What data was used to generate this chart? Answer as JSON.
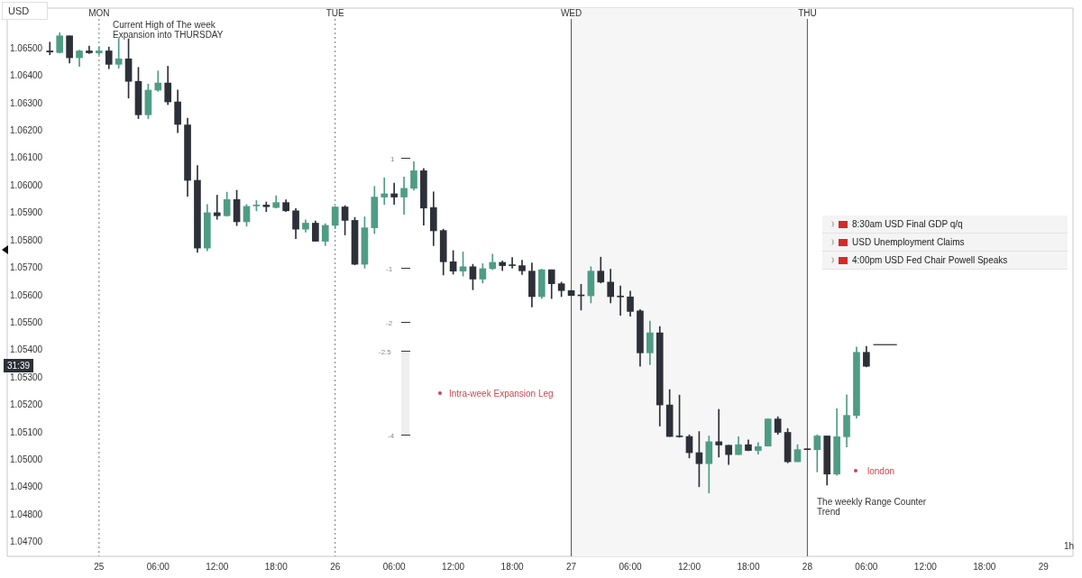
{
  "chart_data": {
    "type": "candlestick",
    "ylabel": "USD",
    "x": [
      "--09-24T19:00",
      "--09-24T20:00",
      "--09-24T21:00",
      "--09-24T22:00",
      "--09-24T23:00",
      "--09-25T00:00",
      "--09-25T01:00",
      "--09-25T02:00",
      "--09-25T03:00",
      "--09-25T04:00",
      "--09-25T05:00",
      "--09-25T06:00",
      "--09-25T07:00",
      "--09-25T08:00",
      "--09-25T09:00",
      "--09-25T10:00",
      "--09-25T11:00",
      "--09-25T12:00",
      "--09-25T13:00",
      "--09-25T14:00",
      "--09-25T15:00",
      "--09-25T16:00",
      "--09-25T17:00",
      "--09-25T18:00",
      "--09-25T19:00",
      "--09-25T20:00",
      "--09-25T21:00",
      "--09-25T22:00",
      "--09-25T23:00",
      "--09-26T00:00",
      "--09-26T01:00",
      "--09-26T02:00",
      "--09-26T03:00",
      "--09-26T04:00",
      "--09-26T05:00",
      "--09-26T06:00",
      "--09-26T07:00",
      "--09-26T08:00",
      "--09-26T09:00",
      "--09-26T10:00",
      "--09-26T11:00",
      "--09-26T12:00",
      "--09-26T13:00",
      "--09-26T14:00",
      "--09-26T15:00",
      "--09-26T16:00",
      "--09-26T17:00",
      "--09-26T18:00",
      "--09-26T19:00",
      "--09-26T20:00",
      "--09-26T21:00",
      "--09-26T22:00",
      "--09-26T23:00",
      "--09-27T00:00",
      "--09-27T01:00",
      "--09-27T02:00",
      "--09-27T03:00",
      "--09-27T04:00",
      "--09-27T05:00",
      "--09-27T06:00",
      "--09-27T07:00",
      "--09-27T08:00",
      "--09-27T09:00",
      "--09-27T10:00",
      "--09-27T11:00",
      "--09-27T12:00",
      "--09-27T13:00",
      "--09-27T14:00",
      "--09-27T15:00",
      "--09-27T16:00",
      "--09-27T17:00",
      "--09-27T18:00",
      "--09-27T19:00",
      "--09-27T20:00",
      "--09-27T21:00",
      "--09-27T22:00",
      "--09-27T23:00",
      "--09-28T00:00",
      "--09-28T01:00",
      "--09-28T02:00",
      "--09-28T03:00",
      "--09-28T04:00",
      "--09-28T05:00",
      "--09-28T06:00"
    ],
    "ohlc": [
      [
        1.06492,
        1.06524,
        1.06478,
        1.06488
      ],
      [
        1.06486,
        1.06558,
        1.06484,
        1.06547
      ],
      [
        1.06547,
        1.06547,
        1.06448,
        1.06467
      ],
      [
        1.06467,
        1.06495,
        1.06435,
        1.06492
      ],
      [
        1.06492,
        1.0651,
        1.06482,
        1.06485
      ],
      [
        1.06485,
        1.06506,
        1.06478,
        1.06492
      ],
      [
        1.06492,
        1.06506,
        1.06427,
        1.06443
      ],
      [
        1.06443,
        1.06538,
        1.06429,
        1.06463
      ],
      [
        1.06463,
        1.06536,
        1.0632,
        1.06381
      ],
      [
        1.06381,
        1.06432,
        1.06245,
        1.06259
      ],
      [
        1.06259,
        1.06371,
        1.06245,
        1.06349
      ],
      [
        1.06349,
        1.06419,
        1.06344,
        1.06375
      ],
      [
        1.06375,
        1.06436,
        1.06296,
        1.06306
      ],
      [
        1.06306,
        1.06349,
        1.06194,
        1.06224
      ],
      [
        1.06222,
        1.06247,
        1.05962,
        1.0602
      ],
      [
        1.0602,
        1.06074,
        1.05757,
        1.05773
      ],
      [
        1.05773,
        1.05932,
        1.05763,
        1.05902
      ],
      [
        1.05902,
        1.05966,
        1.05878,
        1.05891
      ],
      [
        1.05891,
        1.05977,
        1.05889,
        1.0595
      ],
      [
        1.0595,
        1.05984,
        1.05855,
        1.05869
      ],
      [
        1.05869,
        1.05932,
        1.05853,
        1.05925
      ],
      [
        1.05927,
        1.05946,
        1.05909,
        1.05929
      ],
      [
        1.0593,
        1.05941,
        1.05906,
        1.05924
      ],
      [
        1.05921,
        1.05964,
        1.05919,
        1.05939
      ],
      [
        1.05939,
        1.05949,
        1.05906,
        1.05909
      ],
      [
        1.05909,
        1.05917,
        1.05807,
        1.05842
      ],
      [
        1.05842,
        1.05876,
        1.05831,
        1.05864
      ],
      [
        1.05864,
        1.05872,
        1.05798,
        1.05798
      ],
      [
        1.05798,
        1.05862,
        1.05782,
        1.05856
      ],
      [
        1.05856,
        1.05925,
        1.05844,
        1.05923
      ],
      [
        1.05923,
        1.05928,
        1.05821,
        1.05874
      ],
      [
        1.05874,
        1.05885,
        1.05712,
        1.05714
      ],
      [
        1.05714,
        1.05887,
        1.057,
        1.05847
      ],
      [
        1.05847,
        1.05998,
        1.05826,
        1.05959
      ],
      [
        1.05959,
        1.06029,
        1.05932,
        1.05971
      ],
      [
        1.05971,
        1.0601,
        1.05932,
        1.05959
      ],
      [
        1.05959,
        1.06032,
        1.05896,
        1.05991
      ],
      [
        1.05991,
        1.06088,
        1.05984,
        1.06055
      ],
      [
        1.06055,
        1.06063,
        1.05857,
        1.05919
      ],
      [
        1.05921,
        1.05978,
        1.05782,
        1.05836
      ],
      [
        1.05837,
        1.05842,
        1.05675,
        1.05723
      ],
      [
        1.05723,
        1.05764,
        1.05678,
        1.05689
      ],
      [
        1.05689,
        1.05759,
        1.05671,
        1.05705
      ],
      [
        1.05705,
        1.05714,
        1.05621,
        1.0566
      ],
      [
        1.0566,
        1.05716,
        1.05646,
        1.05698
      ],
      [
        1.05698,
        1.05751,
        1.05694,
        1.05721
      ],
      [
        1.05721,
        1.05726,
        1.05691,
        1.05709
      ],
      [
        1.05711,
        1.05739,
        1.057,
        1.05709
      ],
      [
        1.05709,
        1.05729,
        1.05677,
        1.0569
      ],
      [
        1.05689,
        1.05719,
        1.05558,
        1.05596
      ],
      [
        1.05596,
        1.05696,
        1.05589,
        1.05694
      ],
      [
        1.05694,
        1.05694,
        1.05589,
        1.05643
      ],
      [
        1.05643,
        1.05649,
        1.05596,
        1.05618
      ],
      [
        1.05618,
        1.05618,
        1.056,
        1.056
      ],
      [
        1.056,
        1.05641,
        1.05547,
        1.05599
      ],
      [
        1.05599,
        1.05705,
        1.05573,
        1.05689
      ],
      [
        1.05689,
        1.0574,
        1.05646,
        1.05649
      ],
      [
        1.05649,
        1.05696,
        1.05573,
        1.05596
      ],
      [
        1.05596,
        1.05635,
        1.05528,
        1.05595
      ],
      [
        1.05595,
        1.05616,
        1.05525,
        1.05542
      ],
      [
        1.05544,
        1.05549,
        1.05342,
        1.05391
      ],
      [
        1.05391,
        1.05507,
        1.05348,
        1.05464
      ],
      [
        1.05464,
        1.05487,
        1.05124,
        1.05201
      ],
      [
        1.05201,
        1.05257,
        1.05086,
        1.05086
      ],
      [
        1.05086,
        1.05237,
        1.05083,
        1.05085
      ],
      [
        1.05086,
        1.05092,
        1.05008,
        1.05027
      ],
      [
        1.05027,
        1.05104,
        1.04903,
        1.04987
      ],
      [
        1.04987,
        1.05088,
        1.0488,
        1.05067
      ],
      [
        1.05067,
        1.05185,
        1.05011,
        1.05055
      ],
      [
        1.05054,
        1.05054,
        1.04984,
        1.0502
      ],
      [
        1.0502,
        1.05085,
        1.0502,
        1.05056
      ],
      [
        1.05056,
        1.05074,
        1.05034,
        1.05035
      ],
      [
        1.05035,
        1.05064,
        1.05022,
        1.05049
      ],
      [
        1.05051,
        1.05151,
        1.05051,
        1.0515
      ],
      [
        1.0515,
        1.05158,
        1.05094,
        1.05101
      ],
      [
        1.05101,
        1.05115,
        1.0499,
        1.04994
      ],
      [
        1.04994,
        1.05056,
        1.04994,
        1.05038
      ],
      [
        1.05038,
        1.05038,
        1.05038,
        1.05038
      ],
      [
        1.05038,
        1.05092,
        1.04957,
        1.05088
      ],
      [
        1.05088,
        1.05088,
        1.04909,
        1.04949
      ],
      [
        1.04949,
        1.05187,
        1.04944,
        1.05085
      ],
      [
        1.05085,
        1.05238,
        1.05048,
        1.05163
      ],
      [
        1.05163,
        1.05412,
        1.05153,
        1.05393
      ],
      [
        1.05393,
        1.05415,
        1.0534,
        1.05342
      ]
    ],
    "colors": [
      "#2d3038",
      "#4f9c85",
      "#2d3038",
      "#4f9c85",
      "#2d3038",
      "#4f9c85",
      "#2d3038",
      "#4f9c85",
      "#2d3038",
      "#2d3038",
      "#4f9c85",
      "#4f9c85",
      "#2d3038",
      "#2d3038",
      "#2d3038",
      "#2d3038",
      "#4f9c85",
      "#2d3038",
      "#4f9c85",
      "#2d3038",
      "#4f9c85",
      "#4f9c85",
      "#2d3038",
      "#4f9c85",
      "#2d3038",
      "#2d3038",
      "#4f9c85",
      "#2d3038",
      "#4f9c85",
      "#4f9c85",
      "#2d3038",
      "#2d3038",
      "#4f9c85",
      "#4f9c85",
      "#4f9c85",
      "#2d3038",
      "#4f9c85",
      "#4f9c85",
      "#2d3038",
      "#2d3038",
      "#2d3038",
      "#2d3038",
      "#4f9c85",
      "#2d3038",
      "#4f9c85",
      "#4f9c85",
      "#2d3038",
      "#2d3038",
      "#2d3038",
      "#2d3038",
      "#4f9c85",
      "#2d3038",
      "#2d3038",
      "#2d3038",
      "#2d3038",
      "#4f9c85",
      "#2d3038",
      "#2d3038",
      "#2d3038",
      "#2d3038",
      "#2d3038",
      "#4f9c85",
      "#2d3038",
      "#2d3038",
      "#2d3038",
      "#2d3038",
      "#2d3038",
      "#4f9c85",
      "#2d3038",
      "#2d3038",
      "#4f9c85",
      "#2d3038",
      "#4f9c85",
      "#4f9c85",
      "#2d3038",
      "#2d3038",
      "#4f9c85",
      "#2d3038",
      "#4f9c85",
      "#2d3038",
      "#4f9c85",
      "#4f9c85",
      "#4f9c85",
      "#2d3038"
    ],
    "series": [
      {
        "type": "line",
        "x": [
          "--09-28T06:42",
          "--09-28T09:06"
        ],
        "values": [
          1.05421,
          1.05421
        ],
        "color": "#000000"
      }
    ],
    "xlim": [
      "--09-24T14:40",
      "--09-29T03:00"
    ],
    "xticks": [
      {
        "value": "--09-25",
        "label": "25"
      },
      {
        "value": "--09-25T06:00",
        "label": "06:00"
      },
      {
        "value": "--09-25T12:00",
        "label": "12:00"
      },
      {
        "value": "--09-25T18:00",
        "label": "18:00"
      },
      {
        "value": "--09-26",
        "label": "26"
      },
      {
        "value": "--09-26T06:00",
        "label": "06:00"
      },
      {
        "value": "--09-26T12:00",
        "label": "12:00"
      },
      {
        "value": "--09-26T18:00",
        "label": "18:00"
      },
      {
        "value": "--09-27",
        "label": "27"
      },
      {
        "value": "--09-27T06:00",
        "label": "06:00"
      },
      {
        "value": "--09-27T12:00",
        "label": "12:00"
      },
      {
        "value": "--09-27T18:00",
        "label": "18:00"
      },
      {
        "value": "--09-28",
        "label": "28"
      },
      {
        "value": "--09-28T06:00",
        "label": "06:00"
      },
      {
        "value": "--09-28T12:00",
        "label": "12:00"
      },
      {
        "value": "--09-28T18:00",
        "label": "18:00"
      },
      {
        "value": "--09-29",
        "label": "29"
      }
    ],
    "ylim": [
      1.04649,
      1.06648
    ],
    "yticks": [
      {
        "value": 1.065,
        "label": "1.06500"
      },
      {
        "value": 1.064,
        "label": "1.06400"
      },
      {
        "value": 1.063,
        "label": "1.06300"
      },
      {
        "value": 1.062,
        "label": "1.06200"
      },
      {
        "value": 1.061,
        "label": "1.06100"
      },
      {
        "value": 1.06,
        "label": "1.06000"
      },
      {
        "value": 1.059,
        "label": "1.05900"
      },
      {
        "value": 1.058,
        "label": "1.05800"
      },
      {
        "value": 1.057,
        "label": "1.05700"
      },
      {
        "value": 1.056,
        "label": "1.05600"
      },
      {
        "value": 1.055,
        "label": "1.05500"
      },
      {
        "value": 1.054,
        "label": "1.05400"
      },
      {
        "value": 1.053,
        "label": "1.05300"
      },
      {
        "value": 1.052,
        "label": "1.05200"
      },
      {
        "value": 1.051,
        "label": "1.05100"
      },
      {
        "value": 1.05,
        "label": "1.05000"
      },
      {
        "value": 1.049,
        "label": "1.04900"
      },
      {
        "value": 1.048,
        "label": "1.04800"
      },
      {
        "value": 1.047,
        "label": "1.04700"
      }
    ],
    "grid": false,
    "legend": false,
    "bands": [
      {
        "axis": "x",
        "from": "--09-27",
        "to": "--09-28",
        "color": "#f6f6f6"
      }
    ],
    "ref_lines": [
      {
        "axis": "x",
        "value": "--09-25",
        "label": "MON",
        "line_style": "dotted",
        "color": "#777777"
      },
      {
        "axis": "x",
        "value": "--09-26",
        "label": "TUE",
        "line_style": "dotted",
        "color": "#777777"
      },
      {
        "axis": "x",
        "value": "--09-27",
        "label": "WED",
        "line_style": "solid",
        "color": "#555555"
      },
      {
        "axis": "x",
        "value": "--09-28",
        "label": "THU",
        "line_style": "solid",
        "color": "#555555"
      }
    ],
    "annotations": [
      "Current High of The week\nExpansion into THURSDAY",
      "1",
      "-1",
      "-2",
      "-2.5",
      "-4",
      "Intra-week Expansion Leg",
      "london",
      "The weekly Range Counter\nTrend",
      "8:30am USD Final GDP q/q",
      "USD Unemployment Claims",
      "4:00pm USD Fed Chair Powell Speaks",
      "31:39",
      "1h"
    ]
  }
}
